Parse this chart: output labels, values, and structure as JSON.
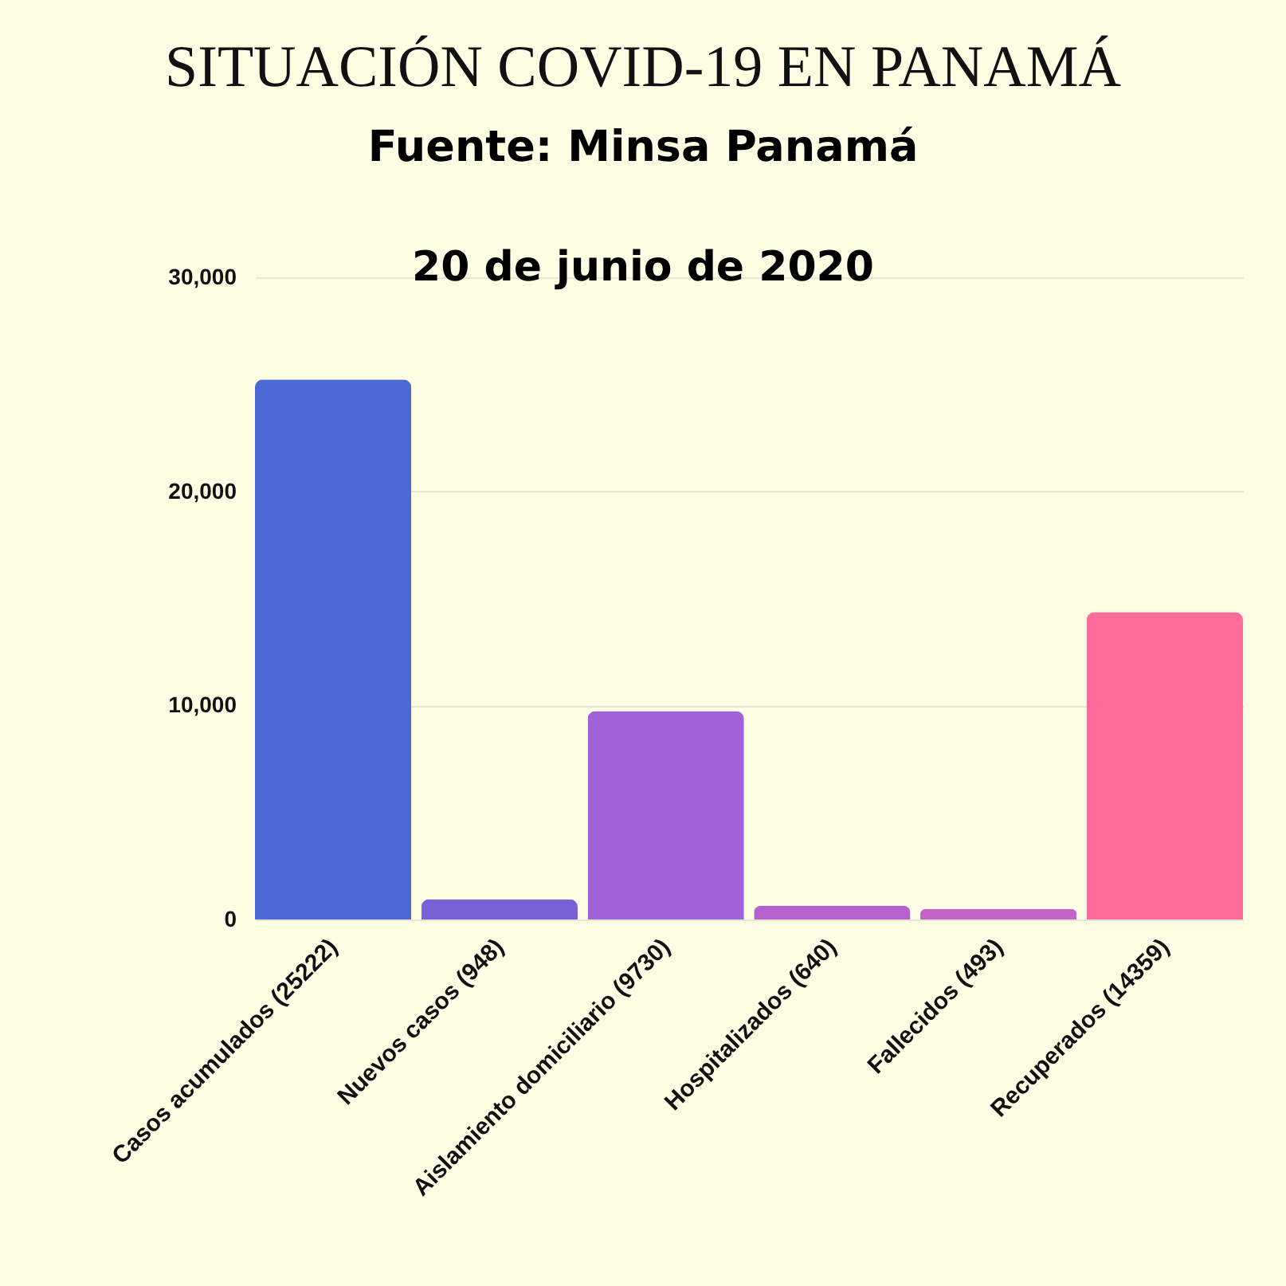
{
  "chart_data": {
    "type": "bar",
    "title": "SITUACIÓN COVID-19 EN PANAMÁ",
    "subtitle": "Fuente: Minsa Panamá",
    "annotations": [
      "20 de junio de 2020"
    ],
    "categories": [
      "Casos acumulados (25222)",
      "Nuevos casos (948)",
      "Aislamiento domiciliario (9730)",
      "Hospitalizados (640)",
      "Fallecidos (493)",
      "Recuperados (14359)"
    ],
    "values": [
      25222,
      948,
      9730,
      640,
      493,
      14359
    ],
    "colors": [
      "#4a6bd4",
      "#7a5fd8",
      "#a062d6",
      "#b562d0",
      "#c365c6",
      "#ff6b9b"
    ],
    "ylim": [
      0,
      30000
    ],
    "yticks": [
      {
        "value": 0,
        "label": "0"
      },
      {
        "value": 10000,
        "label": "10,000"
      },
      {
        "value": 20000,
        "label": "20,000"
      },
      {
        "value": 30000,
        "label": "30,000"
      }
    ],
    "grid": "y"
  }
}
